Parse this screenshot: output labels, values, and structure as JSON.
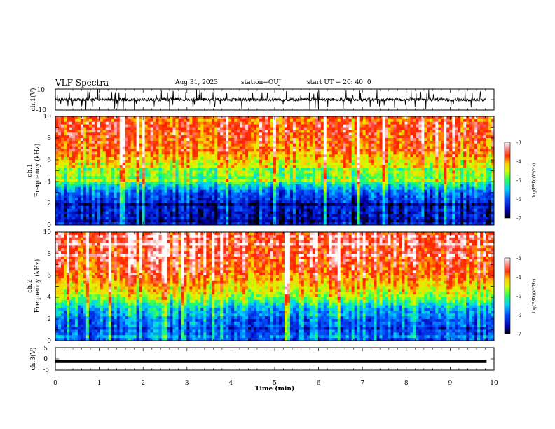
{
  "header": {
    "title": "VLF Spectra",
    "date": "Aug.31, 2023",
    "station": "station=OUJ",
    "start_ut": "start UT =  20: 40: 0"
  },
  "colors": {
    "waveform": "#000000",
    "colormap": [
      "#000000",
      "#0000b0",
      "#0050ff",
      "#00d0ff",
      "#20ff60",
      "#d0ff00",
      "#ffcc00",
      "#ff3000",
      "#ff2000",
      "#ff9090",
      "#ffffff"
    ]
  },
  "chart_data": [
    {
      "type": "line",
      "ylabel": "ch.1(V)",
      "ylim": [
        -10,
        10
      ],
      "yticks": [
        "10",
        "-10"
      ],
      "xlim": [
        0,
        10
      ],
      "series_description": "noisy waveform centered near 0 V with spikes"
    },
    {
      "type": "heatmap",
      "ylabel": "ch.1\nFrequency (kHz)",
      "ylim": [
        0,
        10
      ],
      "yticks": [
        "0",
        "2",
        "4",
        "6",
        "8",
        "10"
      ],
      "xlim": [
        0,
        10
      ],
      "colorbar": {
        "label": "log(PSD)(V²/Hz)",
        "range": [
          -7,
          -3
        ],
        "ticks": [
          "-3",
          "-4",
          "-5",
          "-6",
          "-7"
        ]
      },
      "intensity_profile": {
        "freq_khz": [
          0,
          1,
          2,
          3,
          4,
          5,
          6,
          7,
          8,
          9,
          10
        ],
        "log_psd": [
          -6.3,
          -6.5,
          -6.3,
          -6.0,
          -5.0,
          -4.6,
          -4.2,
          -3.9,
          -3.7,
          -3.6,
          -3.6
        ]
      }
    },
    {
      "type": "heatmap",
      "ylabel": "ch.2\nFrequency (kHz)",
      "ylim": [
        0,
        10
      ],
      "yticks": [
        "0",
        "2",
        "4",
        "6",
        "8",
        "10"
      ],
      "xlim": [
        0,
        10
      ],
      "colorbar": {
        "label": "log(PSD)(V²/Hz)",
        "range": [
          -7,
          -3
        ],
        "ticks": [
          "-3",
          "-4",
          "-5",
          "-6",
          "-7"
        ]
      },
      "intensity_profile": {
        "freq_khz": [
          0,
          1,
          2,
          3,
          4,
          5,
          6,
          7,
          8,
          9,
          10
        ],
        "log_psd": [
          -6.0,
          -6.0,
          -5.9,
          -5.5,
          -4.6,
          -4.2,
          -3.8,
          -3.6,
          -3.5,
          -3.5,
          -3.5
        ]
      }
    },
    {
      "type": "line",
      "ylabel": "ch.3(V)",
      "ylim": [
        -5,
        5
      ],
      "yticks": [
        "5",
        "0",
        "-5"
      ],
      "xlim": [
        0,
        10
      ],
      "xlabel": "Time (min)",
      "xticks": [
        "0",
        "1",
        "2",
        "3",
        "4",
        "5",
        "6",
        "7",
        "8",
        "9",
        "10"
      ],
      "constant_value": -1.2,
      "data_end_min": 9.83
    }
  ]
}
